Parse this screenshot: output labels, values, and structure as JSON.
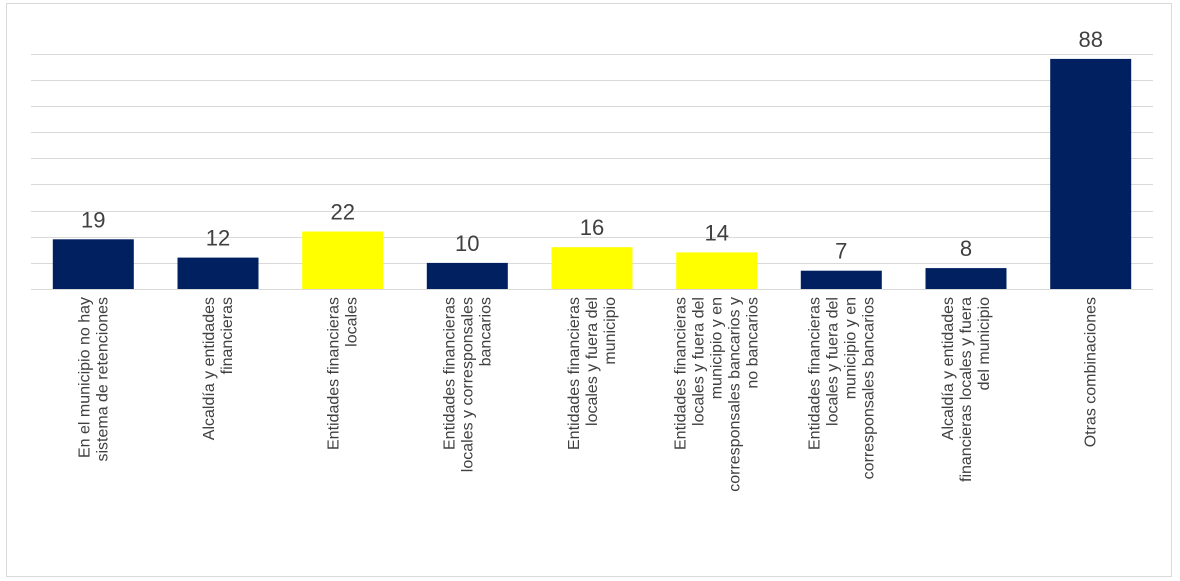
{
  "chart_data": {
    "type": "bar",
    "title": "",
    "xlabel": "",
    "ylabel": "",
    "ylim": [
      0,
      90
    ],
    "grid": true,
    "legend": "none",
    "categories": [
      [
        "En el municipio no hay",
        "sistema de retenciones"
      ],
      [
        "Alcaldía y entidades",
        "financieras"
      ],
      [
        "Entidades financieras",
        "locales"
      ],
      [
        "Entidades financieras",
        "locales y corresponsales",
        "bancarios"
      ],
      [
        "Entidades financieras",
        "locales y fuera del",
        "municipio"
      ],
      [
        "Entidades financieras",
        "locales y fuera del",
        "municipio y en",
        "corresponsales bancarios y",
        "no bancarios"
      ],
      [
        "Entidades financieras",
        "locales y fuera del",
        "municipio y en",
        "corresponsales bancarios"
      ],
      [
        "Alcaldía y entidades",
        "financieras locales y fuera",
        "del municipio"
      ],
      [
        "Otras combinaciones"
      ]
    ],
    "values": [
      19,
      12,
      22,
      10,
      16,
      14,
      7,
      8,
      88
    ],
    "colors": [
      "#002060",
      "#002060",
      "#ffff00",
      "#002060",
      "#ffff00",
      "#ffff00",
      "#002060",
      "#002060",
      "#002060"
    ]
  }
}
